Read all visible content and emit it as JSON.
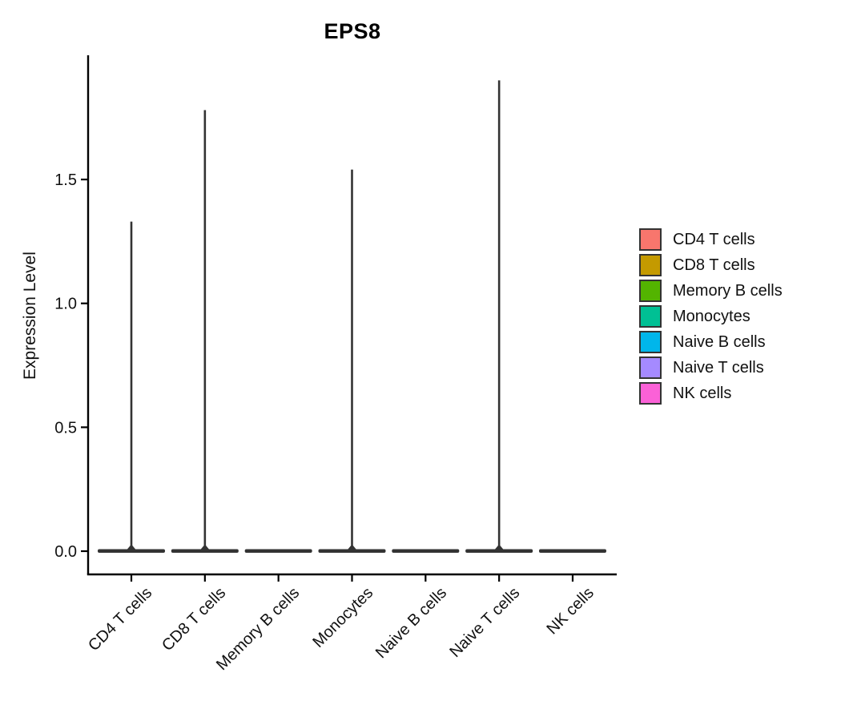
{
  "title": "EPS8",
  "y_axis": {
    "label": "Expression Level",
    "tick_labels": [
      "0.0",
      "0.5",
      "1.0",
      "1.5"
    ]
  },
  "chart_data": {
    "type": "violin",
    "title": "EPS8",
    "xlabel": "",
    "ylabel": "Expression Level",
    "ylim": [
      0,
      2.0
    ],
    "y_ticks": [
      0.0,
      0.5,
      1.0,
      1.5
    ],
    "y_tick_labels": [
      "0.0",
      "0.5",
      "1.0",
      "1.5"
    ],
    "grid": false,
    "categories": [
      "CD4 T cells",
      "CD8 T cells",
      "Memory B cells",
      "Monocytes",
      "Naive B cells",
      "Naive T cells",
      "NK cells"
    ],
    "series": [
      {
        "name": "CD4 T cells",
        "color": "#F8766D",
        "max_expression": 1.33,
        "bulk_at": 0,
        "shape": "flat base with thin spike to max"
      },
      {
        "name": "CD8 T cells",
        "color": "#C49A00",
        "max_expression": 1.78,
        "bulk_at": 0,
        "shape": "flat base with thin spike to max"
      },
      {
        "name": "Memory B cells",
        "color": "#53B400",
        "max_expression": 0.0,
        "bulk_at": 0,
        "shape": "flat base only"
      },
      {
        "name": "Monocytes",
        "color": "#00C094",
        "max_expression": 1.54,
        "bulk_at": 0,
        "shape": "flat base with thin spike to max"
      },
      {
        "name": "Naive B cells",
        "color": "#00B6EB",
        "max_expression": 0.0,
        "bulk_at": 0,
        "shape": "flat base only"
      },
      {
        "name": "Naive T cells",
        "color": "#A58AFF",
        "max_expression": 1.9,
        "bulk_at": 0,
        "shape": "flat base with thin spike to max"
      },
      {
        "name": "NK cells",
        "color": "#FB61D7",
        "max_expression": 0.0,
        "bulk_at": 0,
        "shape": "flat base only"
      }
    ],
    "legend": {
      "position": "right",
      "entries": [
        {
          "label": "CD4 T cells",
          "color": "#F8766D"
        },
        {
          "label": "CD8 T cells",
          "color": "#C49A00"
        },
        {
          "label": "Memory B cells",
          "color": "#53B400"
        },
        {
          "label": "Monocytes",
          "color": "#00C094"
        },
        {
          "label": "Naive B cells",
          "color": "#00B6EB"
        },
        {
          "label": "Naive T cells",
          "color": "#A58AFF"
        },
        {
          "label": "NK cells",
          "color": "#FB61D7"
        }
      ]
    },
    "violin_outline_color": "#333333",
    "axis_color": "#000000"
  }
}
